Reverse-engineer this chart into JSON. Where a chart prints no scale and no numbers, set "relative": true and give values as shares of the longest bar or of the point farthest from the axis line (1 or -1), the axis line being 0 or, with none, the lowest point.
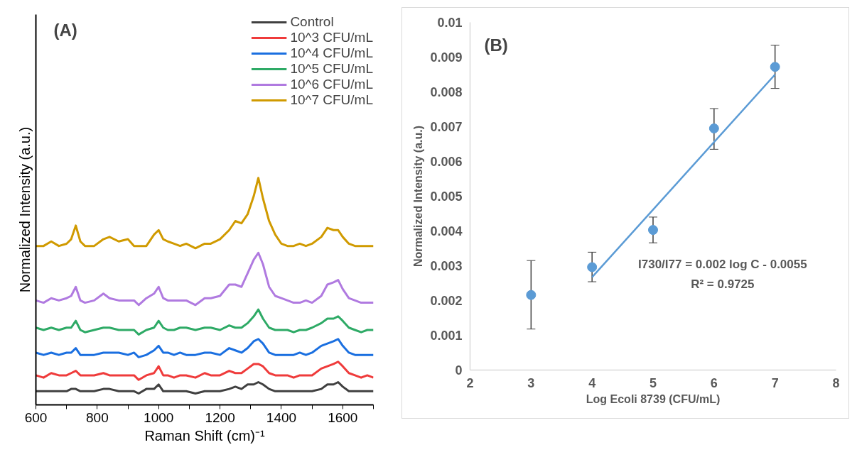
{
  "chart_data": [
    {
      "type": "line",
      "relative": true,
      "xlabel": "Raman Shift (cm)⁻¹",
      "ylabel": "Normalized Intensity (a.u.)",
      "annotations": [
        "(A)"
      ],
      "legend": "top right",
      "grid": false,
      "x": [
        600,
        625,
        650,
        675,
        700,
        715,
        730,
        745,
        760,
        790,
        820,
        840,
        870,
        900,
        920,
        935,
        960,
        985,
        1000,
        1015,
        1030,
        1050,
        1070,
        1090,
        1120,
        1150,
        1170,
        1200,
        1230,
        1250,
        1270,
        1290,
        1310,
        1325,
        1340,
        1360,
        1380,
        1400,
        1420,
        1440,
        1460,
        1480,
        1500,
        1530,
        1550,
        1570,
        1585,
        1600,
        1620,
        1640,
        1660,
        1680,
        1700
      ],
      "xlim": [
        600,
        1700
      ],
      "xticks": [
        600,
        {
          "value": 700,
          "label": null
        },
        800,
        {
          "value": 900,
          "label": null
        },
        1000,
        {
          "value": 1100,
          "label": null
        },
        1200,
        {
          "value": 1300,
          "label": null
        },
        1400,
        {
          "value": 1500,
          "label": null
        },
        1600,
        {
          "value": 1700,
          "label": null
        }
      ],
      "series": [
        {
          "name": "Control",
          "color": "#404040",
          "values": [
            0.06,
            0.06,
            0.06,
            0.06,
            0.06,
            0.07,
            0.07,
            0.06,
            0.06,
            0.06,
            0.07,
            0.07,
            0.06,
            0.06,
            0.06,
            0.05,
            0.07,
            0.07,
            0.09,
            0.06,
            0.06,
            0.06,
            0.06,
            0.06,
            0.05,
            0.06,
            0.06,
            0.06,
            0.07,
            0.08,
            0.07,
            0.09,
            0.09,
            0.1,
            0.09,
            0.07,
            0.06,
            0.06,
            0.06,
            0.06,
            0.06,
            0.06,
            0.06,
            0.07,
            0.09,
            0.09,
            0.1,
            0.08,
            0.06,
            0.06,
            0.06,
            0.06,
            0.06
          ]
        },
        {
          "name": "10^3 CFU/mL",
          "color": "#ef3b3b",
          "values": [
            0.13,
            0.12,
            0.14,
            0.13,
            0.13,
            0.14,
            0.15,
            0.13,
            0.13,
            0.13,
            0.14,
            0.13,
            0.13,
            0.13,
            0.13,
            0.11,
            0.13,
            0.14,
            0.17,
            0.13,
            0.13,
            0.12,
            0.13,
            0.13,
            0.12,
            0.14,
            0.13,
            0.13,
            0.15,
            0.14,
            0.14,
            0.16,
            0.18,
            0.18,
            0.17,
            0.14,
            0.13,
            0.13,
            0.13,
            0.12,
            0.13,
            0.13,
            0.13,
            0.16,
            0.17,
            0.18,
            0.19,
            0.17,
            0.14,
            0.13,
            0.12,
            0.13,
            0.12
          ]
        },
        {
          "name": "10^4 CFU/mL",
          "color": "#1a6fe0",
          "values": [
            0.23,
            0.22,
            0.23,
            0.22,
            0.23,
            0.23,
            0.25,
            0.22,
            0.22,
            0.22,
            0.23,
            0.23,
            0.23,
            0.22,
            0.23,
            0.21,
            0.22,
            0.24,
            0.26,
            0.23,
            0.23,
            0.22,
            0.23,
            0.22,
            0.22,
            0.23,
            0.23,
            0.22,
            0.25,
            0.24,
            0.23,
            0.25,
            0.28,
            0.29,
            0.27,
            0.23,
            0.22,
            0.22,
            0.22,
            0.22,
            0.23,
            0.22,
            0.23,
            0.26,
            0.27,
            0.28,
            0.29,
            0.26,
            0.23,
            0.22,
            0.22,
            0.22,
            0.22
          ]
        },
        {
          "name": "10^5 CFU/mL",
          "color": "#2eaa66",
          "values": [
            0.34,
            0.33,
            0.34,
            0.33,
            0.34,
            0.34,
            0.37,
            0.33,
            0.32,
            0.33,
            0.34,
            0.34,
            0.33,
            0.33,
            0.33,
            0.31,
            0.33,
            0.34,
            0.37,
            0.34,
            0.33,
            0.33,
            0.34,
            0.34,
            0.33,
            0.34,
            0.34,
            0.33,
            0.35,
            0.34,
            0.34,
            0.36,
            0.39,
            0.42,
            0.38,
            0.34,
            0.33,
            0.33,
            0.33,
            0.32,
            0.33,
            0.33,
            0.34,
            0.36,
            0.38,
            0.38,
            0.39,
            0.37,
            0.34,
            0.33,
            0.32,
            0.33,
            0.33
          ]
        },
        {
          "name": "10^6 CFU/mL",
          "color": "#b07ae0",
          "values": [
            0.46,
            0.45,
            0.47,
            0.46,
            0.47,
            0.48,
            0.52,
            0.46,
            0.45,
            0.46,
            0.49,
            0.47,
            0.46,
            0.46,
            0.46,
            0.44,
            0.47,
            0.49,
            0.52,
            0.47,
            0.46,
            0.46,
            0.46,
            0.46,
            0.44,
            0.47,
            0.47,
            0.48,
            0.53,
            0.53,
            0.52,
            0.58,
            0.64,
            0.67,
            0.62,
            0.52,
            0.48,
            0.47,
            0.46,
            0.45,
            0.45,
            0.46,
            0.45,
            0.48,
            0.53,
            0.54,
            0.55,
            0.51,
            0.47,
            0.46,
            0.45,
            0.45,
            0.45
          ]
        },
        {
          "name": "10^7 CFU/mL",
          "color": "#d09a00",
          "values": [
            0.7,
            0.7,
            0.72,
            0.7,
            0.71,
            0.73,
            0.79,
            0.72,
            0.7,
            0.7,
            0.73,
            0.74,
            0.72,
            0.73,
            0.7,
            0.7,
            0.7,
            0.75,
            0.77,
            0.73,
            0.72,
            0.71,
            0.7,
            0.71,
            0.69,
            0.71,
            0.71,
            0.73,
            0.77,
            0.81,
            0.8,
            0.84,
            0.92,
            1.0,
            0.91,
            0.81,
            0.75,
            0.71,
            0.7,
            0.7,
            0.71,
            0.7,
            0.71,
            0.74,
            0.78,
            0.77,
            0.77,
            0.74,
            0.71,
            0.7,
            0.7,
            0.7,
            0.7
          ]
        }
      ]
    },
    {
      "type": "scatter",
      "xlabel": "Log Ecoli 8739 (CFU/mL)",
      "ylabel": "Normalized Intensity (a.u.)",
      "annotations": [
        "(B)",
        "I730/I77 = 0.002 log C - 0.0055",
        "R² = 0.9725"
      ],
      "grid": false,
      "legend": false,
      "marker": "circle",
      "xlim": [
        2,
        8
      ],
      "xticks": [
        2,
        3,
        4,
        5,
        6,
        7,
        8
      ],
      "ylim": [
        0,
        0.01
      ],
      "yticks": [
        0,
        0.001,
        0.002,
        0.003,
        0.004,
        0.005,
        0.006,
        0.007,
        0.008,
        0.009,
        0.01
      ],
      "series": [
        {
          "type": "scatter",
          "color": "#5b9bd5",
          "x": [
            3,
            4,
            5,
            6,
            7
          ],
          "values": [
            0.00216,
            0.00296,
            0.00403,
            0.00695,
            0.00872
          ],
          "errors": [
            [
              0.00118,
              0.00315
            ],
            [
              0.00254,
              0.00339
            ],
            [
              0.00366,
              0.0044
            ],
            [
              0.00635,
              0.00752
            ],
            [
              0.0081,
              0.00934
            ]
          ]
        },
        {
          "type": "line",
          "color": "#5b9bd5",
          "marker": "none",
          "x": [
            4,
            7
          ],
          "values": [
            0.00267,
            0.0085
          ]
        }
      ]
    }
  ]
}
